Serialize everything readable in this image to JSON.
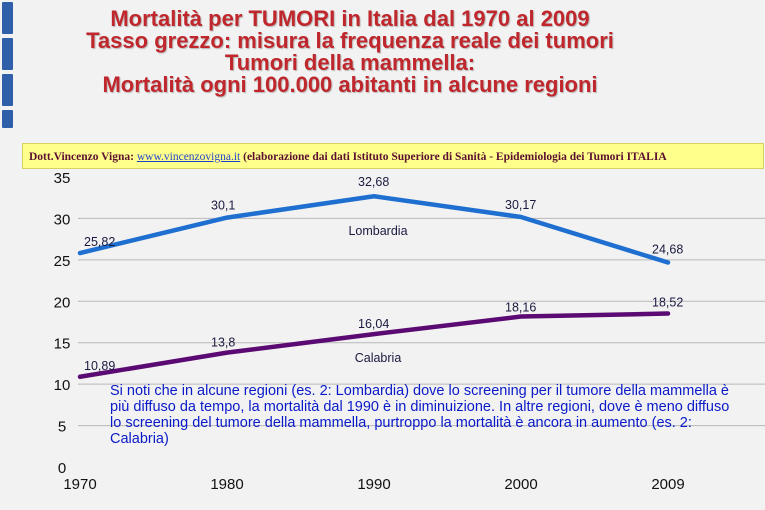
{
  "titles": [
    "Mortalità per TUMORI in Italia dal 1970 al 2009",
    "Tasso grezzo: misura la frequenza reale dei tumori",
    "Tumori della mammella:",
    "Mortalità ogni 100.000 abitanti in alcune regioni"
  ],
  "credit": {
    "author": "Dott.Vincenzo Vigna:",
    "link": "www.vincenzovigna.it",
    "source": "(elaborazione dai dati Istituto Superiore di Sanità - Epidemiologia dei Tumori ITALIA"
  },
  "note": "Si noti che in alcune regioni (es. 2: Lombardia) dove lo screening per il tumore della mammella è più diffuso da tempo, la mortalità dal 1990 è in diminuizione. In altre regioni, dove è meno diffuso lo screening del tumore della mammella, purtroppo la mortalità è ancora in aumento (es. 2: Calabria)",
  "colors": {
    "title": "#c0272d",
    "lombardia": "#1f6fd1",
    "calabria": "#5a0a72",
    "credit_bg": "#ffff8c",
    "note": "#0a1ac8"
  },
  "chart_data": {
    "type": "line",
    "x": [
      "1970",
      "1980",
      "1990",
      "2000",
      "2009"
    ],
    "series": [
      {
        "name": "Lombardia",
        "values": [
          25.82,
          30.1,
          32.68,
          30.17,
          24.68
        ],
        "labels": [
          "25,82",
          "30,1",
          "32,68",
          "30,17",
          "24,68"
        ]
      },
      {
        "name": "Calabria",
        "values": [
          10.89,
          13.8,
          16.04,
          18.16,
          18.52
        ],
        "labels": [
          "10,89",
          "13,8",
          "16,04",
          "18,16",
          "18,52"
        ]
      }
    ],
    "yticks": [
      "0",
      "5",
      "10",
      "15",
      "20",
      "25",
      "30",
      "35"
    ],
    "ylim": [
      0,
      35
    ],
    "grid": true
  }
}
